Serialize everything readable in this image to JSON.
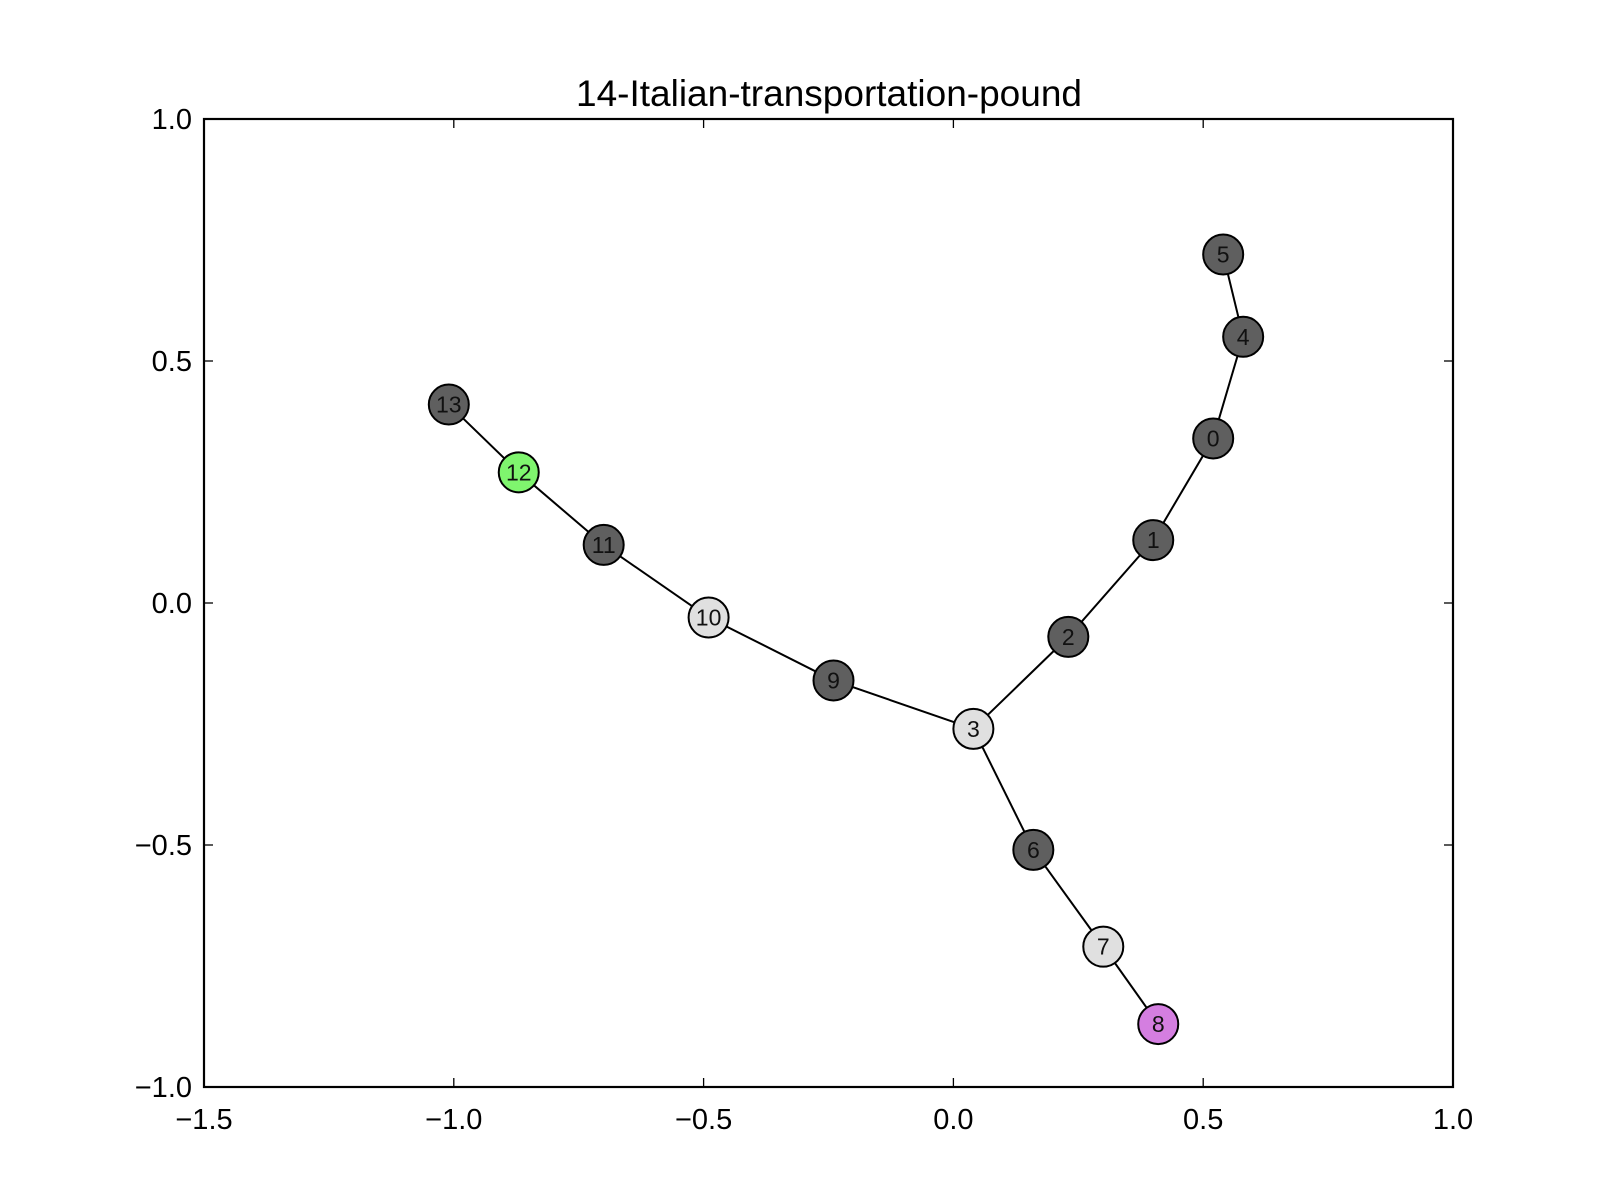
{
  "chart_data": {
    "type": "network",
    "title": "14-Italian-transportation-pound",
    "xlim": [
      -1.5,
      1.0
    ],
    "ylim": [
      -1.0,
      1.0
    ],
    "x_ticks": [
      {
        "value": -1.5,
        "label": "−1.5"
      },
      {
        "value": -1.0,
        "label": "−1.0"
      },
      {
        "value": -0.5,
        "label": "−0.5"
      },
      {
        "value": 0.0,
        "label": "0.0"
      },
      {
        "value": 0.5,
        "label": "0.5"
      },
      {
        "value": 1.0,
        "label": "1.0"
      }
    ],
    "y_ticks": [
      {
        "value": 1.0,
        "label": "1.0"
      },
      {
        "value": 0.5,
        "label": "0.5"
      },
      {
        "value": 0.0,
        "label": "0.0"
      },
      {
        "value": -0.5,
        "label": "−0.5"
      },
      {
        "value": -1.0,
        "label": "−1.0"
      }
    ],
    "grid": false,
    "colors": {
      "dark": "#5f5f5f",
      "light": "#e0e0e0",
      "green": "#7ff56e",
      "purple": "#d47ee0"
    },
    "nodes": [
      {
        "id": "0",
        "x": 0.52,
        "y": 0.34,
        "color": "#5f5f5f"
      },
      {
        "id": "1",
        "x": 0.4,
        "y": 0.13,
        "color": "#5f5f5f"
      },
      {
        "id": "2",
        "x": 0.23,
        "y": -0.07,
        "color": "#5f5f5f"
      },
      {
        "id": "3",
        "x": 0.04,
        "y": -0.26,
        "color": "#e0e0e0"
      },
      {
        "id": "4",
        "x": 0.58,
        "y": 0.55,
        "color": "#5f5f5f"
      },
      {
        "id": "5",
        "x": 0.54,
        "y": 0.72,
        "color": "#5f5f5f"
      },
      {
        "id": "6",
        "x": 0.16,
        "y": -0.51,
        "color": "#5f5f5f"
      },
      {
        "id": "7",
        "x": 0.3,
        "y": -0.71,
        "color": "#e0e0e0"
      },
      {
        "id": "8",
        "x": 0.41,
        "y": -0.87,
        "color": "#d47ee0"
      },
      {
        "id": "9",
        "x": -0.24,
        "y": -0.16,
        "color": "#5f5f5f"
      },
      {
        "id": "10",
        "x": -0.49,
        "y": -0.03,
        "color": "#e0e0e0"
      },
      {
        "id": "11",
        "x": -0.7,
        "y": 0.12,
        "color": "#5f5f5f"
      },
      {
        "id": "12",
        "x": -0.87,
        "y": 0.27,
        "color": "#7ff56e"
      },
      {
        "id": "13",
        "x": -1.01,
        "y": 0.41,
        "color": "#5f5f5f"
      }
    ],
    "edges": [
      [
        "5",
        "4"
      ],
      [
        "4",
        "0"
      ],
      [
        "0",
        "1"
      ],
      [
        "1",
        "2"
      ],
      [
        "2",
        "3"
      ],
      [
        "3",
        "6"
      ],
      [
        "6",
        "7"
      ],
      [
        "7",
        "8"
      ],
      [
        "3",
        "9"
      ],
      [
        "9",
        "10"
      ],
      [
        "10",
        "11"
      ],
      [
        "11",
        "12"
      ],
      [
        "12",
        "13"
      ]
    ]
  }
}
